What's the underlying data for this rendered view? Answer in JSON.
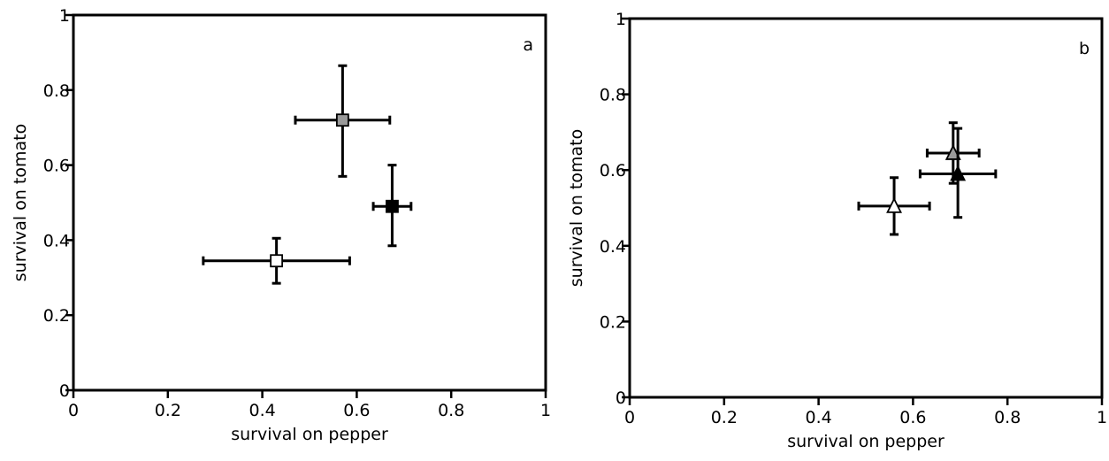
{
  "chart_data": [
    {
      "type": "scatter",
      "panel_label": "a",
      "xlabel": "survival on pepper",
      "ylabel": "survival on tomato",
      "xlim": [
        0,
        1
      ],
      "ylim": [
        0,
        1
      ],
      "x_ticks": [
        "0",
        "0.2",
        "0.4",
        "0.6",
        "0.8",
        "1"
      ],
      "y_ticks": [
        "0",
        "0.2",
        "0.4",
        "0.6",
        "0.8",
        "1"
      ],
      "grid": false,
      "points": [
        {
          "marker": "square",
          "fill": "#999999",
          "x": 0.57,
          "y": 0.72,
          "x_err": [
            0.47,
            0.67
          ],
          "y_err": [
            0.57,
            0.865
          ]
        },
        {
          "marker": "square",
          "fill": "#000000",
          "x": 0.675,
          "y": 0.49,
          "x_err": [
            0.635,
            0.715
          ],
          "y_err": [
            0.385,
            0.6
          ]
        },
        {
          "marker": "square",
          "fill": "#ffffff",
          "x": 0.43,
          "y": 0.345,
          "x_err": [
            0.275,
            0.585
          ],
          "y_err": [
            0.285,
            0.405
          ]
        }
      ]
    },
    {
      "type": "scatter",
      "panel_label": "b",
      "xlabel": "survival on pepper",
      "ylabel": "survival on tomato",
      "xlim": [
        0,
        1
      ],
      "ylim": [
        0,
        1
      ],
      "x_ticks": [
        "0",
        "0.2",
        "0.4",
        "0.6",
        "0.8",
        "1"
      ],
      "y_ticks": [
        "0",
        "0.2",
        "0.4",
        "0.6",
        "0.8",
        "1"
      ],
      "grid": false,
      "points": [
        {
          "marker": "triangle",
          "fill": "#999999",
          "x": 0.685,
          "y": 0.645,
          "x_err": [
            0.63,
            0.74
          ],
          "y_err": [
            0.565,
            0.725
          ]
        },
        {
          "marker": "triangle",
          "fill": "#000000",
          "x": 0.695,
          "y": 0.59,
          "x_err": [
            0.615,
            0.775
          ],
          "y_err": [
            0.475,
            0.71
          ]
        },
        {
          "marker": "triangle",
          "fill": "#ffffff",
          "x": 0.56,
          "y": 0.505,
          "x_err": [
            0.485,
            0.635
          ],
          "y_err": [
            0.43,
            0.58
          ]
        }
      ]
    }
  ]
}
